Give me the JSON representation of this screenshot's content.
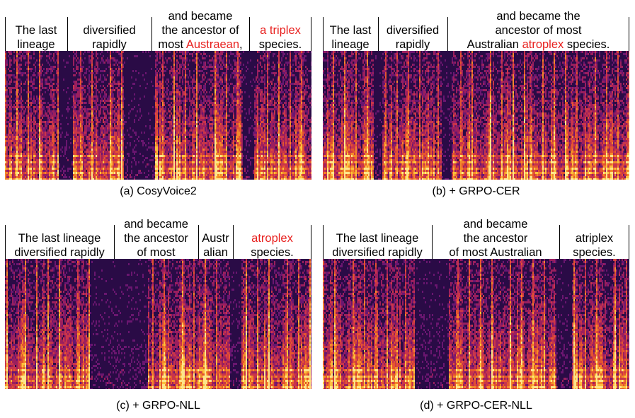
{
  "panels": [
    {
      "caption": "(a) CosyVoice2",
      "segments": [
        {
          "lines": [
            [
              {
                "text": "The last"
              }
            ],
            [
              {
                "text": "lineage"
              }
            ]
          ]
        },
        {
          "lines": [
            [
              {
                "text": "diversified"
              }
            ],
            [
              {
                "text": "rapidly"
              }
            ]
          ]
        },
        {
          "lines": [
            [
              {
                "text": "and became"
              }
            ],
            [
              {
                "text": "the ancestor of"
              }
            ],
            [
              {
                "text": "most "
              },
              {
                "text": "Austraean",
                "hl": true
              },
              {
                "text": ","
              }
            ]
          ]
        },
        {
          "lines": [
            [
              {
                "text": "a triplex",
                "hl": true
              }
            ],
            [
              {
                "text": "species."
              }
            ]
          ]
        }
      ]
    },
    {
      "caption": "(b) + GRPO-CER",
      "segments": [
        {
          "lines": [
            [
              {
                "text": "The last"
              }
            ],
            [
              {
                "text": "lineage"
              }
            ]
          ]
        },
        {
          "lines": [
            [
              {
                "text": "diversified"
              }
            ],
            [
              {
                "text": "rapidly"
              }
            ]
          ]
        },
        {
          "lines": [
            [
              {
                "text": "and became the"
              }
            ],
            [
              {
                "text": "ancestor of most"
              }
            ],
            [
              {
                "text": "Australian "
              },
              {
                "text": "atroplex",
                "hl": true
              },
              {
                "text": " species."
              }
            ]
          ]
        }
      ]
    },
    {
      "caption": "(c) + GRPO-NLL",
      "segments": [
        {
          "lines": [
            [
              {
                "text": "The last lineage"
              }
            ],
            [
              {
                "text": "diversified rapidly"
              }
            ]
          ]
        },
        {
          "lines": [
            [
              {
                "text": "and became"
              }
            ],
            [
              {
                "text": "the ancestor"
              }
            ],
            [
              {
                "text": "of most"
              }
            ]
          ]
        },
        {
          "lines": [
            [
              {
                "text": "Austr"
              }
            ],
            [
              {
                "text": "alian"
              }
            ]
          ]
        },
        {
          "lines": [
            [
              {
                "text": "atroplex",
                "hl": true
              }
            ],
            [
              {
                "text": "species."
              }
            ]
          ]
        }
      ]
    },
    {
      "caption": "(d) + GRPO-CER-NLL",
      "segments": [
        {
          "lines": [
            [
              {
                "text": "The last lineage"
              }
            ],
            [
              {
                "text": "diversified rapidly"
              }
            ]
          ]
        },
        {
          "lines": [
            [
              {
                "text": "and became"
              }
            ],
            [
              {
                "text": "the ancestor"
              }
            ],
            [
              {
                "text": "of most Australian"
              }
            ]
          ]
        },
        {
          "lines": [
            [
              {
                "text": "atriplex"
              }
            ],
            [
              {
                "text": "species."
              }
            ]
          ]
        }
      ]
    }
  ],
  "colors": {
    "highlight": "#e8201e"
  }
}
